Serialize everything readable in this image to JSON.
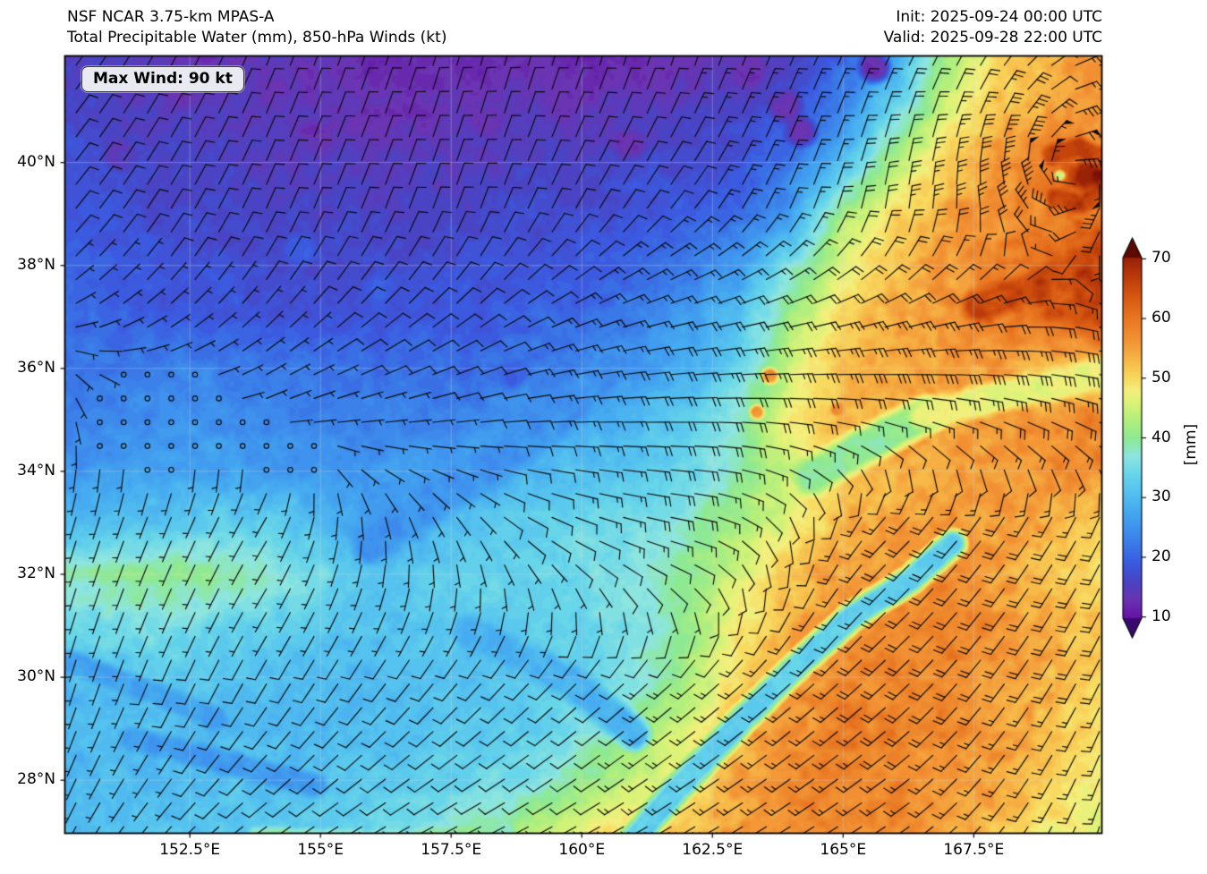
{
  "header": {
    "model_title": "NSF NCAR 3.75-km MPAS-A",
    "field_title": "Total Precipitable Water (mm), 850-hPa Winds (kt)",
    "init_time": "Init: 2025-09-24 00:00 UTC",
    "valid_time": "Valid: 2025-09-28 22:00 UTC"
  },
  "badge": {
    "max_wind_label": "Max Wind: 90 kt"
  },
  "axes": {
    "x_ticks": [
      {
        "label": "152.5°E",
        "lon": 152.5
      },
      {
        "label": "155°E",
        "lon": 155
      },
      {
        "label": "157.5°E",
        "lon": 157.5
      },
      {
        "label": "160°E",
        "lon": 160
      },
      {
        "label": "162.5°E",
        "lon": 162.5
      },
      {
        "label": "165°E",
        "lon": 165
      },
      {
        "label": "167.5°E",
        "lon": 167.5
      }
    ],
    "y_ticks": [
      {
        "label": "28°N",
        "lat": 28
      },
      {
        "label": "30°N",
        "lat": 30
      },
      {
        "label": "32°N",
        "lat": 32
      },
      {
        "label": "34°N",
        "lat": 34
      },
      {
        "label": "36°N",
        "lat": 36
      },
      {
        "label": "38°N",
        "lat": 38
      },
      {
        "label": "40°N",
        "lat": 40
      }
    ]
  },
  "colorbar": {
    "label": "[mm]",
    "ticks": [
      10,
      20,
      30,
      40,
      50,
      60,
      70
    ],
    "vmin": 9.8,
    "vmax": 70.2
  },
  "chart_data": {
    "type": "heatmap",
    "title": "Total Precipitable Water (mm), 850-hPa Winds (kt)",
    "units": "mm",
    "max_wind_kt": 90,
    "extent": {
      "lon_min": 150.1,
      "lon_max": 169.96,
      "lat_min": 26.96,
      "lat_max": 42.08
    },
    "colormap_stops": [
      [
        6,
        "#3a0a70"
      ],
      [
        10,
        "#6414a6"
      ],
      [
        13,
        "#6a34b2"
      ],
      [
        16,
        "#4a44c4"
      ],
      [
        19,
        "#3b5ae0"
      ],
      [
        22,
        "#3a78e8"
      ],
      [
        25,
        "#3f93ee"
      ],
      [
        28,
        "#46abf0"
      ],
      [
        31,
        "#55c2ef"
      ],
      [
        34,
        "#68d6e9"
      ],
      [
        37,
        "#8de5df"
      ],
      [
        40,
        "#8ee993"
      ],
      [
        43,
        "#b2ef7d"
      ],
      [
        46,
        "#dcf378"
      ],
      [
        48,
        "#f3ef7d"
      ],
      [
        50,
        "#f8da60"
      ],
      [
        53,
        "#f7b948"
      ],
      [
        56,
        "#f39737"
      ],
      [
        60,
        "#ea7823"
      ],
      [
        64,
        "#d55610"
      ],
      [
        68,
        "#b23309"
      ],
      [
        72,
        "#831205"
      ],
      [
        78,
        "#5c0a03"
      ]
    ],
    "tpw_grid": {
      "lons": [
        150,
        151,
        152,
        153,
        154,
        155,
        156,
        157,
        158,
        159,
        160,
        161,
        162,
        163,
        164,
        165,
        166,
        167,
        168,
        169,
        170
      ],
      "lats": [
        42,
        41,
        40,
        39,
        38,
        37,
        36,
        35,
        34,
        33,
        32,
        31,
        30,
        29,
        28,
        27
      ],
      "values": [
        [
          16,
          15,
          14,
          13,
          14,
          13,
          12,
          12,
          12,
          13,
          12,
          12,
          13,
          14,
          16,
          20,
          28,
          42,
          50,
          54,
          55
        ],
        [
          17,
          16,
          15,
          15,
          14,
          14,
          13,
          13,
          14,
          14,
          14,
          15,
          15,
          16,
          18,
          24,
          34,
          46,
          52,
          55,
          56
        ],
        [
          18,
          17,
          16,
          16,
          15,
          15,
          15,
          15,
          15,
          16,
          16,
          17,
          17,
          18,
          22,
          30,
          44,
          51,
          55,
          62,
          58
        ],
        [
          19,
          18,
          17,
          17,
          16,
          16,
          16,
          16,
          16,
          17,
          17,
          18,
          19,
          21,
          26,
          42,
          50,
          54,
          56,
          58,
          60
        ],
        [
          20,
          19,
          18,
          18,
          17,
          17,
          17,
          17,
          18,
          18,
          19,
          20,
          22,
          26,
          36,
          47,
          52,
          55,
          58,
          62,
          66
        ],
        [
          21,
          20,
          19,
          19,
          18,
          18,
          18,
          19,
          19,
          20,
          21,
          23,
          26,
          31,
          42,
          50,
          54,
          56,
          58,
          62,
          65
        ],
        [
          22,
          22,
          23,
          23,
          22,
          22,
          21,
          21,
          21,
          22,
          23,
          25,
          28,
          34,
          45,
          52,
          54,
          55,
          55,
          52,
          50
        ],
        [
          23,
          24,
          25,
          25,
          24,
          24,
          23,
          23,
          24,
          26,
          28,
          30,
          33,
          38,
          48,
          53,
          54,
          55,
          56,
          56,
          57
        ],
        [
          26,
          26,
          27,
          27,
          26,
          26,
          26,
          27,
          28,
          30,
          31,
          32,
          34,
          39,
          45,
          51,
          53,
          54,
          55,
          56,
          57
        ],
        [
          30,
          31,
          32,
          33,
          33,
          30,
          27,
          28,
          31,
          33,
          34,
          35,
          38,
          42,
          47,
          53,
          55,
          56,
          55,
          53,
          50
        ],
        [
          38,
          40,
          41,
          40,
          38,
          35,
          31,
          33,
          34,
          34,
          35,
          37,
          40,
          46,
          52,
          55,
          56,
          57,
          55,
          52,
          49
        ],
        [
          34,
          35,
          36,
          34,
          33,
          32,
          31,
          32,
          32,
          33,
          34,
          36,
          40,
          48,
          53,
          56,
          57,
          58,
          56,
          54,
          52
        ],
        [
          30,
          31,
          32,
          31,
          31,
          30,
          30,
          31,
          31,
          32,
          33,
          36,
          42,
          50,
          55,
          57,
          58,
          57,
          55,
          53,
          50
        ],
        [
          29,
          30,
          31,
          30,
          30,
          30,
          30,
          31,
          32,
          33,
          36,
          40,
          46,
          53,
          56,
          58,
          58,
          57,
          55,
          52,
          49
        ],
        [
          29,
          30,
          30,
          31,
          31,
          31,
          32,
          33,
          34,
          36,
          40,
          44,
          48,
          54,
          57,
          58,
          57,
          56,
          54,
          51,
          48
        ],
        [
          30,
          31,
          31,
          32,
          32,
          33,
          34,
          36,
          39,
          44,
          47,
          50,
          52,
          55,
          57,
          58,
          57,
          55,
          52,
          48,
          46
        ]
      ]
    },
    "features": [
      {
        "kind": "stroke",
        "v": 33,
        "w": 0.34,
        "pts": [
          [
            160.7,
            26.5
          ],
          [
            161.8,
            27.8
          ],
          [
            163.1,
            29.2
          ],
          [
            164.2,
            30.3
          ],
          [
            165.2,
            31.2
          ],
          [
            166.3,
            31.9
          ],
          [
            167.1,
            32.6
          ]
        ]
      },
      {
        "kind": "stroke",
        "v": 40,
        "w": 0.45,
        "pts": [
          [
            164.4,
            33.9
          ],
          [
            165.6,
            34.6
          ],
          [
            166.6,
            35.1
          ]
        ]
      },
      {
        "kind": "stroke",
        "v": 47,
        "w": 0.4,
        "pts": [
          [
            166.6,
            35.1
          ],
          [
            168.2,
            35.5
          ],
          [
            170.0,
            35.9
          ]
        ]
      },
      {
        "kind": "stroke",
        "v": 65,
        "w": 0.4,
        "pts": [
          [
            167.6,
            37.2
          ],
          [
            168.7,
            37.6
          ],
          [
            170.0,
            38.2
          ]
        ]
      },
      {
        "kind": "spot",
        "v": 70,
        "r": 0.42,
        "pt": [
          169.7,
          39.75
        ]
      },
      {
        "kind": "stroke",
        "v": 66,
        "w": 0.25,
        "pts": [
          [
            169.0,
            40.15
          ],
          [
            169.5,
            40.3
          ],
          [
            169.95,
            40.1
          ]
        ]
      },
      {
        "kind": "stroke",
        "v": 66,
        "w": 0.25,
        "pts": [
          [
            169.1,
            39.3
          ],
          [
            169.6,
            39.2
          ],
          [
            169.95,
            39.45
          ]
        ]
      },
      {
        "kind": "spot",
        "v": 45,
        "r": 0.13,
        "pt": [
          169.15,
          39.75
        ]
      },
      {
        "kind": "spot",
        "v": 13,
        "r": 0.5,
        "pt": [
          152.4,
          41.4
        ]
      },
      {
        "kind": "spot",
        "v": 13,
        "r": 0.45,
        "pt": [
          155.4,
          41.8
        ]
      },
      {
        "kind": "spot",
        "v": 13,
        "r": 0.5,
        "pt": [
          157.6,
          41.9
        ]
      },
      {
        "kind": "spot",
        "v": 13,
        "r": 0.45,
        "pt": [
          159.6,
          41.2
        ]
      },
      {
        "kind": "spot",
        "v": 13,
        "r": 0.5,
        "pt": [
          161.4,
          41.7
        ]
      },
      {
        "kind": "spot",
        "v": 13,
        "r": 0.45,
        "pt": [
          163.2,
          41.85
        ]
      },
      {
        "kind": "spot",
        "v": 13,
        "r": 0.4,
        "pt": [
          154.9,
          40.5
        ]
      },
      {
        "kind": "spot",
        "v": 13,
        "r": 0.4,
        "pt": [
          158.2,
          40.8
        ]
      },
      {
        "kind": "spot",
        "v": 13,
        "r": 0.4,
        "pt": [
          160.9,
          40.4
        ]
      },
      {
        "kind": "spot",
        "v": 13,
        "r": 0.4,
        "pt": [
          163.9,
          41.1
        ]
      },
      {
        "kind": "spot",
        "v": 13,
        "r": 0.38,
        "pt": [
          165.6,
          41.85
        ]
      },
      {
        "kind": "spot",
        "v": 13,
        "r": 0.4,
        "pt": [
          156.6,
          41.0
        ]
      },
      {
        "kind": "spot",
        "v": 13,
        "r": 0.38,
        "pt": [
          164.2,
          40.6
        ]
      },
      {
        "kind": "spot",
        "v": 14,
        "r": 0.4,
        "pt": [
          151.2,
          40.15
        ]
      },
      {
        "kind": "spot",
        "v": 19,
        "r": 0.4,
        "pt": [
          156.2,
          37.6
        ]
      },
      {
        "kind": "spot",
        "v": 19,
        "r": 0.38,
        "pt": [
          158.0,
          36.9
        ]
      },
      {
        "kind": "spot",
        "v": 19,
        "r": 0.4,
        "pt": [
          154.6,
          38.3
        ]
      },
      {
        "kind": "spot",
        "v": 19,
        "r": 0.35,
        "pt": [
          159.8,
          37.2
        ]
      },
      {
        "kind": "spot",
        "v": 20,
        "r": 0.33,
        "pt": [
          158.7,
          35.9
        ]
      },
      {
        "kind": "spot",
        "v": 21,
        "r": 0.3,
        "pt": [
          160.3,
          36.1
        ]
      },
      {
        "kind": "stroke",
        "v": 26,
        "w": 0.3,
        "pts": [
          [
            151.4,
            28.8
          ],
          [
            153.4,
            28.3
          ],
          [
            154.9,
            27.9
          ]
        ]
      },
      {
        "kind": "stroke",
        "v": 27,
        "w": 0.28,
        "pts": [
          [
            150.2,
            30.3
          ],
          [
            151.8,
            29.7
          ],
          [
            153.0,
            29.2
          ]
        ]
      },
      {
        "kind": "stroke",
        "v": 29,
        "w": 0.4,
        "pts": [
          [
            157.8,
            30.9
          ],
          [
            159.8,
            29.9
          ],
          [
            161.0,
            28.9
          ]
        ]
      },
      {
        "kind": "stroke",
        "v": 25,
        "w": 0.5,
        "pts": [
          [
            156.0,
            32.6
          ],
          [
            157.3,
            33.5
          ],
          [
            158.8,
            34.5
          ],
          [
            160.0,
            35.5
          ],
          [
            160.6,
            36.2
          ]
        ]
      },
      {
        "kind": "spot",
        "v": 57,
        "r": 0.2,
        "pt": [
          163.6,
          35.85
        ]
      },
      {
        "kind": "spot",
        "v": 58,
        "r": 0.16,
        "pt": [
          164.9,
          35.2
        ]
      },
      {
        "kind": "spot",
        "v": 56,
        "r": 0.18,
        "pt": [
          163.35,
          35.15
        ]
      },
      {
        "kind": "stroke",
        "v": 39,
        "w": 0.25,
        "pts": [
          [
            153.8,
            26.9
          ],
          [
            156.5,
            26.8
          ],
          [
            158.5,
            27.0
          ]
        ]
      }
    ],
    "wind": {
      "lons": [
        150,
        154,
        158,
        162,
        166,
        170
      ],
      "lats": [
        42,
        39,
        36,
        33,
        30,
        27
      ],
      "u": [
        [
          -6,
          -4,
          -3,
          -4,
          -6,
          -1
        ],
        [
          -6,
          -4,
          -4,
          -8,
          -6,
          -14
        ],
        [
          -2,
          -5,
          -10,
          -22,
          -32,
          -36
        ],
        [
          2,
          3,
          -4,
          -20,
          14,
          8
        ],
        [
          2,
          4,
          6,
          10,
          14,
          8
        ],
        [
          3,
          7,
          10,
          12,
          14,
          4
        ]
      ],
      "v": [
        [
          -8,
          -10,
          -11,
          -12,
          -10,
          -2
        ],
        [
          -7,
          -9,
          -11,
          -9,
          -18,
          0
        ],
        [
          2,
          -3,
          -4,
          -2,
          0,
          4
        ],
        [
          7,
          5,
          5,
          4,
          14,
          16
        ],
        [
          7,
          7,
          7,
          9,
          13,
          16
        ],
        [
          6,
          5,
          5,
          7,
          9,
          13
        ]
      ],
      "vortex": {
        "lon": 169.45,
        "lat": 39.82,
        "core_radius": 0.5,
        "max_speed": 56,
        "decay": 1.3,
        "inflow": 0.3
      },
      "calm_patches": [
        {
          "lon": 151.9,
          "lat": 35.0,
          "rx": 1.6,
          "ry": 1.25
        },
        {
          "lon": 169.2,
          "lat": 41.45,
          "rx": 0.35,
          "ry": 0.85
        },
        {
          "lon": 155.0,
          "lat": 26.7,
          "rx": 5.5,
          "ry": 0.45
        },
        {
          "lon": 168.0,
          "lat": 26.85,
          "rx": 1.3,
          "ry": 0.35
        }
      ]
    }
  }
}
